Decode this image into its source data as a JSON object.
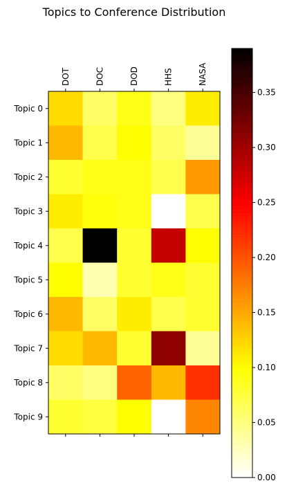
{
  "chart_data": {
    "type": "heatmap",
    "title": "Topics to Conference Distribution",
    "columns": [
      "DOT",
      "DOC",
      "DOD",
      "HHS",
      "NASA"
    ],
    "rows": [
      "Topic 0",
      "Topic 1",
      "Topic 2",
      "Topic 3",
      "Topic 4",
      "Topic 5",
      "Topic 6",
      "Topic 7",
      "Topic 8",
      "Topic 9"
    ],
    "values": [
      [
        0.12,
        0.06,
        0.09,
        0.05,
        0.11
      ],
      [
        0.14,
        0.07,
        0.1,
        0.06,
        0.04
      ],
      [
        0.08,
        0.09,
        0.09,
        0.07,
        0.16
      ],
      [
        0.11,
        0.095,
        0.09,
        0.0,
        0.07
      ],
      [
        0.07,
        0.39,
        0.08,
        0.28,
        0.1
      ],
      [
        0.1,
        0.03,
        0.08,
        0.09,
        0.08
      ],
      [
        0.14,
        0.06,
        0.11,
        0.07,
        0.08
      ],
      [
        0.12,
        0.14,
        0.08,
        0.31,
        0.04
      ],
      [
        0.06,
        0.05,
        0.19,
        0.14,
        0.22
      ],
      [
        0.08,
        0.075,
        0.1,
        0.0,
        0.17
      ]
    ],
    "colormap": "hot_r",
    "colorbar": {
      "range": [
        0.0,
        0.39
      ],
      "ticks": [
        0.0,
        0.05,
        0.1,
        0.15,
        0.2,
        0.25,
        0.3,
        0.35
      ],
      "tick_labels": [
        "0.00",
        "0.05",
        "0.10",
        "0.15",
        "0.20",
        "0.25",
        "0.30",
        "0.35"
      ]
    },
    "xlabel": "",
    "ylabel": "",
    "grid": false,
    "x_tick_position": "top"
  }
}
